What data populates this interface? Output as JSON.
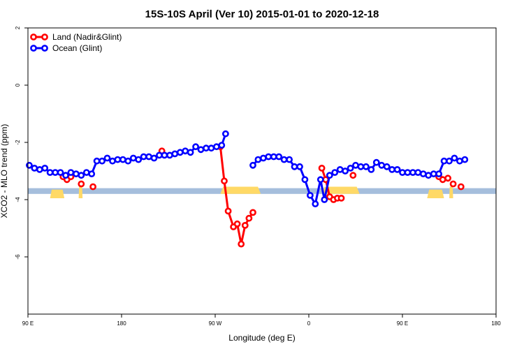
{
  "chart_data": {
    "type": "line",
    "title": "15S-10S April (Ver 10)   2015-01-01 to 2020-12-18",
    "xlabel": "Longitude (deg E)",
    "ylabel": "XCO2 - MLO trend (ppm)",
    "xlim": [
      90,
      450
    ],
    "ylim": [
      -8,
      2
    ],
    "x_ticks": [
      {
        "value": 90,
        "label": "90 E"
      },
      {
        "value": 162,
        "label": "180"
      },
      {
        "value": 234,
        "label": "90 W"
      },
      {
        "value": 306,
        "label": "0"
      },
      {
        "value": 378,
        "label": "90 E"
      },
      {
        "value": 450,
        "label": "180"
      }
    ],
    "y_ticks": [
      {
        "value": 2,
        "label": "2"
      },
      {
        "value": 0,
        "label": "0"
      },
      {
        "value": -2,
        "label": "-2"
      },
      {
        "value": -4,
        "label": "-4"
      },
      {
        "value": -6,
        "label": "-6"
      }
    ],
    "legend": {
      "position": "top-left"
    },
    "series": [
      {
        "name": "Land (Nadir&Glint)",
        "color": "#ff0000",
        "segments": [
          [
            [
              117,
              -3.2
            ],
            [
              120,
              -3.3
            ],
            [
              123,
              -3.2
            ]
          ],
          [
            [
              131,
              -3.45
            ]
          ],
          [
            [
              140,
              -3.55
            ]
          ],
          [
            [
              193,
              -2.3
            ]
          ],
          [
            [
              238,
              -2.15
            ],
            [
              241,
              -3.35
            ],
            [
              244,
              -4.4
            ],
            [
              248,
              -4.95
            ],
            [
              251,
              -4.85
            ],
            [
              254,
              -5.55
            ],
            [
              257,
              -4.9
            ],
            [
              260,
              -4.65
            ],
            [
              263,
              -4.45
            ]
          ],
          [
            [
              316,
              -2.9
            ],
            [
              319,
              -3.3
            ],
            [
              322,
              -3.9
            ],
            [
              325,
              -4.0
            ],
            [
              328,
              -3.95
            ]
          ],
          [
            [
              331,
              -3.95
            ]
          ],
          [
            [
              340,
              -3.15
            ]
          ],
          [
            [
              406,
              -3.2
            ],
            [
              409,
              -3.3
            ],
            [
              413,
              -3.25
            ]
          ],
          [
            [
              417,
              -3.45
            ]
          ],
          [
            [
              423,
              -3.55
            ]
          ]
        ]
      },
      {
        "name": "Ocean (Glint)",
        "color": "#0000ff",
        "segments": [
          [
            [
              91,
              -2.8
            ],
            [
              95,
              -2.9
            ],
            [
              99,
              -2.95
            ],
            [
              103,
              -2.9
            ],
            [
              107,
              -3.05
            ],
            [
              111,
              -3.05
            ],
            [
              115,
              -3.05
            ],
            [
              119,
              -3.15
            ],
            [
              123,
              -3.05
            ],
            [
              127,
              -3.1
            ],
            [
              131,
              -3.15
            ],
            [
              135,
              -3.05
            ],
            [
              139,
              -3.1
            ],
            [
              143,
              -2.65
            ],
            [
              147,
              -2.65
            ],
            [
              151,
              -2.55
            ],
            [
              155,
              -2.65
            ],
            [
              159,
              -2.6
            ],
            [
              163,
              -2.6
            ],
            [
              167,
              -2.65
            ],
            [
              171,
              -2.55
            ],
            [
              175,
              -2.6
            ],
            [
              179,
              -2.5
            ],
            [
              183,
              -2.5
            ],
            [
              187,
              -2.55
            ],
            [
              191,
              -2.45
            ],
            [
              195,
              -2.45
            ],
            [
              199,
              -2.45
            ],
            [
              203,
              -2.4
            ],
            [
              207,
              -2.35
            ],
            [
              211,
              -2.3
            ],
            [
              215,
              -2.35
            ],
            [
              219,
              -2.15
            ],
            [
              223,
              -2.25
            ],
            [
              227,
              -2.2
            ],
            [
              231,
              -2.2
            ],
            [
              235,
              -2.15
            ],
            [
              239,
              -2.1
            ],
            [
              242,
              -1.7
            ]
          ],
          [
            [
              263,
              -2.8
            ],
            [
              267,
              -2.6
            ],
            [
              271,
              -2.55
            ],
            [
              275,
              -2.5
            ],
            [
              279,
              -2.5
            ],
            [
              283,
              -2.5
            ],
            [
              287,
              -2.6
            ],
            [
              291,
              -2.6
            ],
            [
              295,
              -2.85
            ],
            [
              299,
              -2.85
            ],
            [
              303,
              -3.3
            ],
            [
              307,
              -3.85
            ],
            [
              311,
              -4.15
            ],
            [
              315,
              -3.3
            ],
            [
              318,
              -4.0
            ],
            [
              322,
              -3.15
            ],
            [
              326,
              -3.05
            ],
            [
              330,
              -2.95
            ],
            [
              334,
              -3.0
            ],
            [
              338,
              -2.9
            ],
            [
              342,
              -2.8
            ],
            [
              346,
              -2.85
            ],
            [
              350,
              -2.85
            ],
            [
              354,
              -2.95
            ],
            [
              358,
              -2.7
            ],
            [
              362,
              -2.8
            ],
            [
              366,
              -2.85
            ],
            [
              370,
              -2.95
            ],
            [
              374,
              -2.95
            ],
            [
              378,
              -3.05
            ],
            [
              382,
              -3.05
            ],
            [
              386,
              -3.05
            ],
            [
              390,
              -3.05
            ],
            [
              394,
              -3.1
            ],
            [
              398,
              -3.15
            ],
            [
              402,
              -3.1
            ],
            [
              406,
              -3.1
            ],
            [
              410,
              -2.65
            ],
            [
              414,
              -2.65
            ],
            [
              418,
              -2.55
            ],
            [
              422,
              -2.65
            ],
            [
              426,
              -2.6
            ]
          ]
        ]
      }
    ],
    "annotations": {
      "ocean_band": {
        "color": "#a5bedc",
        "y_range": [
          -3.8,
          -3.6
        ]
      },
      "land_fill_color": "#ffd966",
      "land_regions": [
        {
          "x_range": [
            107,
            118
          ],
          "y_range": [
            -3.95,
            -3.65
          ]
        },
        {
          "x_range": [
            129,
            132
          ],
          "y_range": [
            -3.95,
            -3.55
          ]
        },
        {
          "x_range": [
            238,
            269
          ],
          "y_range": [
            -3.8,
            -3.55
          ]
        },
        {
          "x_range": [
            316,
            345
          ],
          "y_range": [
            -3.8,
            -3.55
          ]
        },
        {
          "x_range": [
            397,
            410
          ],
          "y_range": [
            -3.95,
            -3.65
          ]
        },
        {
          "x_range": [
            414,
            417
          ],
          "y_range": [
            -3.95,
            -3.55
          ]
        }
      ]
    }
  }
}
